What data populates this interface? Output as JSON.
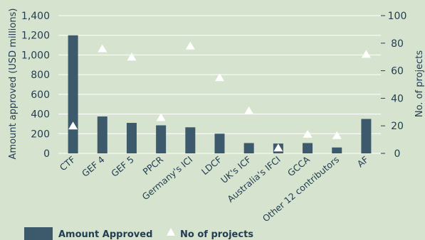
{
  "colors": {
    "background": "#d6e4cf",
    "bar": "#3d5a6c",
    "marker": "#ffffff",
    "grid": "#ffffff",
    "text": "#233d52"
  },
  "chart_data": {
    "type": "bar",
    "categories": [
      "CTF",
      "GEF 4",
      "GEF 5",
      "PPCR",
      "Germany's ICI",
      "LDCF",
      "UK's ICF",
      "Australia's IFCI",
      "GCCA",
      "Other 12 contributors",
      "AF"
    ],
    "series": [
      {
        "name": "Amount Approved",
        "type": "bar",
        "axis": "left",
        "values": [
          1200,
          375,
          310,
          285,
          265,
          200,
          105,
          100,
          105,
          60,
          350
        ]
      },
      {
        "name": "No of projects",
        "type": "scatter",
        "marker": "triangle",
        "axis": "right",
        "values": [
          20,
          76,
          70,
          26,
          78,
          55,
          31,
          4,
          14,
          13,
          72
        ]
      }
    ],
    "ylabel": "Amount approved (USD millions)",
    "y2label": "No. of projects",
    "ylim": [
      0,
      1400
    ],
    "y2lim": [
      0,
      100
    ],
    "yticks": [
      "0",
      "200",
      "400",
      "600",
      "800",
      "1,000",
      "1,200",
      "1,400"
    ],
    "y2ticks": [
      "0",
      "20",
      "40",
      "60",
      "80",
      "100"
    ],
    "grid": true,
    "legend": "bottom-left"
  }
}
